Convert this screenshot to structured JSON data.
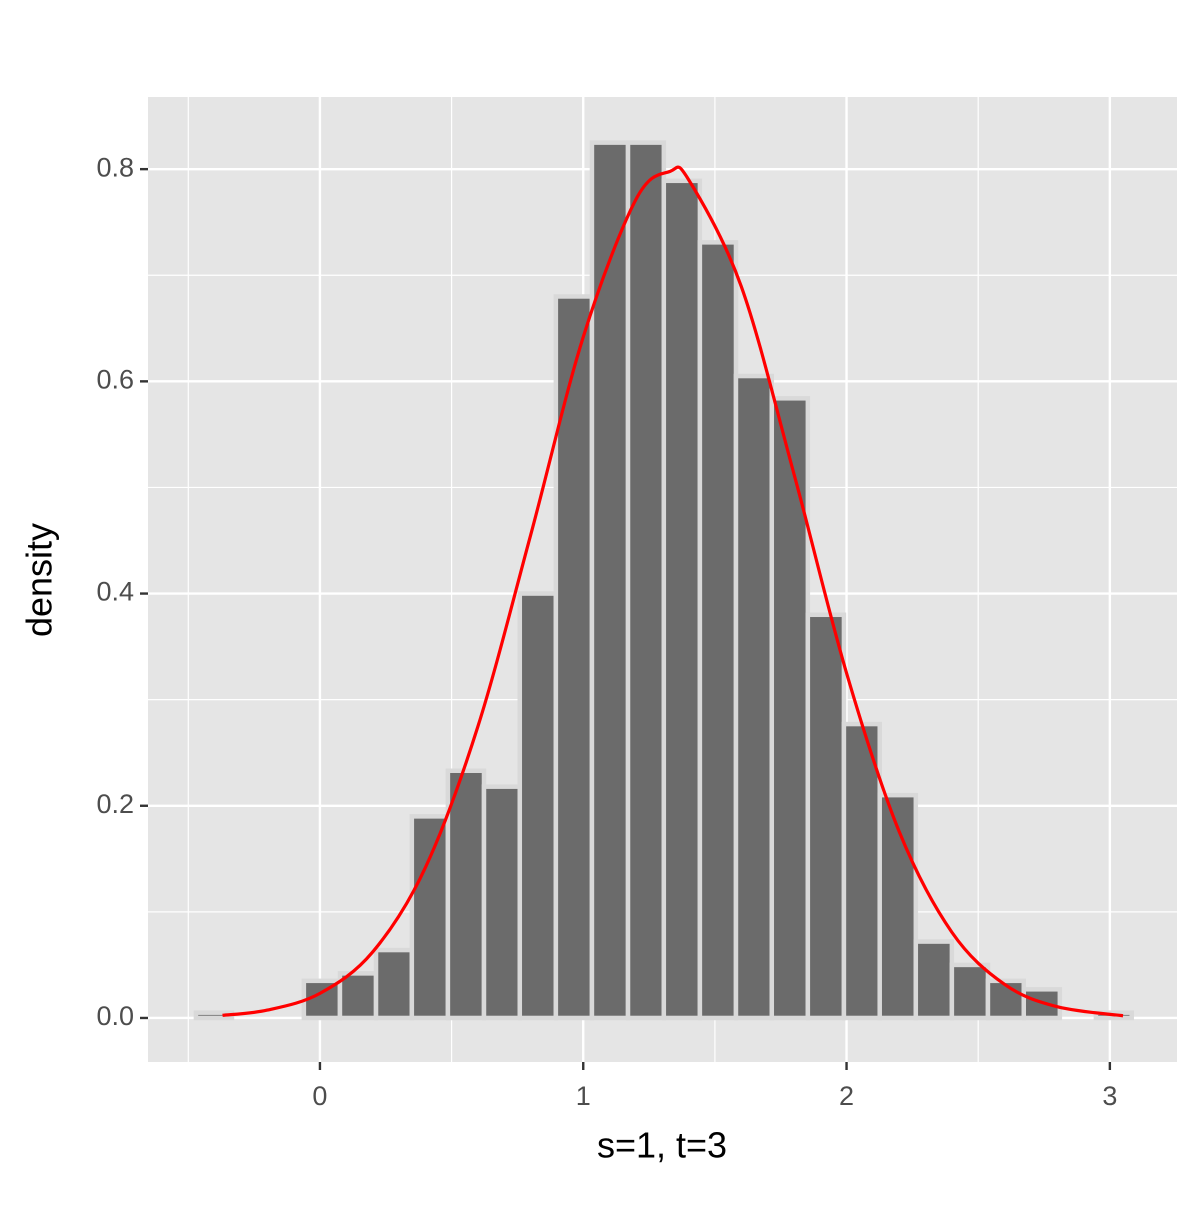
{
  "chart_data": {
    "type": "histogram",
    "bins": [
      -0.471,
      -0.334,
      -0.198,
      -0.061,
      0.076,
      0.213,
      0.349,
      0.486,
      0.623,
      0.759,
      0.896,
      1.033,
      1.17,
      1.306,
      1.443,
      1.58,
      1.716,
      1.853,
      1.99,
      2.126,
      2.263,
      2.4,
      2.537,
      2.673,
      2.81,
      2.947,
      3.083
    ],
    "values": [
      0.005,
      0,
      0,
      0.035,
      0.042,
      0.064,
      0.19,
      0.233,
      0.218,
      0.4,
      0.68,
      0.825,
      0.825,
      0.789,
      0.731,
      0.605,
      0.584,
      0.38,
      0.277,
      0.21,
      0.072,
      0.05,
      0.035,
      0.027,
      0,
      0.005
    ],
    "color": "#6b6b6b",
    "edge_color": "#d9d9d9",
    "curve": {
      "color": "#ff0000",
      "x": [
        -0.37,
        -0.2,
        0,
        0.2,
        0.4,
        0.6,
        0.8,
        1.0,
        1.2,
        1.33,
        1.4,
        1.6,
        1.8,
        2.0,
        2.2,
        2.4,
        2.6,
        2.8,
        3.05
      ],
      "y": [
        0.0025,
        0.0074,
        0.0232,
        0.0621,
        0.1415,
        0.2748,
        0.4549,
        0.6418,
        0.7714,
        0.7979,
        0.7901,
        0.6896,
        0.513,
        0.3251,
        0.1756,
        0.0808,
        0.0317,
        0.0106,
        0.0021
      ]
    },
    "xlabel": "s=1, t=3",
    "ylabel": "density",
    "xlim": [
      -0.653,
      3.255
    ],
    "ylim": [
      -0.0415,
      0.868
    ],
    "xticks": [
      0,
      1,
      2,
      3
    ],
    "yticks": [
      {
        "value": 0,
        "label": "0.0"
      },
      0.2,
      0.4,
      0.6,
      0.8
    ],
    "x_minor_grid": [
      -0.5,
      0.5,
      1.5,
      2.5
    ],
    "y_minor_grid": [
      0.1,
      0.3,
      0.5,
      0.7
    ],
    "grid": true
  }
}
